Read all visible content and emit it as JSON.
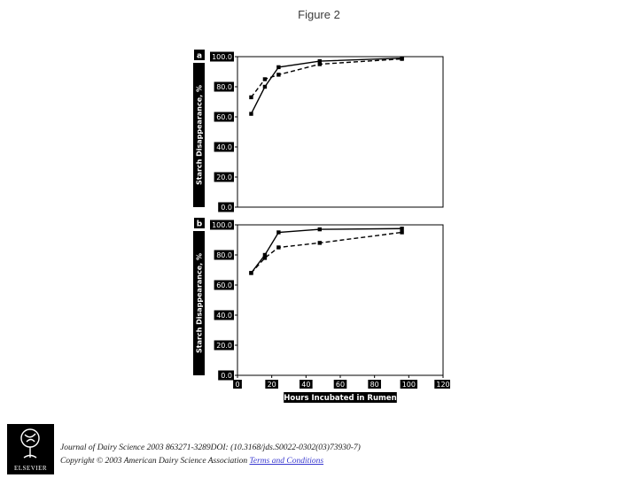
{
  "slide": {
    "title": "Figure 2"
  },
  "logo": {
    "name": "ELSEVIER"
  },
  "footer": {
    "citation": "Journal of Dairy Science 2003 863271-3289DOI: (10.3168/jds.S0022-0302(03)73930-7)",
    "copyright": "Copyright © 2003 American Dairy Science Association ",
    "terms_link": "Terms and Conditions",
    "link_color": "#3a3ad0"
  },
  "chart_data": [
    {
      "type": "line",
      "panel": "a",
      "title": "",
      "ylabel": "Starch Disappearance, %",
      "xlabel": "",
      "x_range": [
        0,
        120
      ],
      "y_range": [
        0,
        100
      ],
      "grid": false,
      "legend": "none",
      "y_ticks": {
        "values": [
          0,
          20,
          40,
          60,
          80,
          100
        ],
        "labels": [
          "0.0",
          "20.0",
          "40.0",
          "60.0",
          "80.0",
          "100.0"
        ]
      },
      "series": [
        {
          "name": "solid line",
          "style": "solid",
          "x": [
            8,
            16,
            24,
            48,
            96
          ],
          "y": [
            62,
            80,
            93,
            97,
            99
          ]
        },
        {
          "name": "dashed line",
          "style": "dashed",
          "x": [
            8,
            16,
            24,
            48,
            96
          ],
          "y": [
            73,
            85,
            88,
            95,
            98.5
          ]
        }
      ]
    },
    {
      "type": "line",
      "panel": "b",
      "title": "",
      "ylabel": "Starch Disappearance, %",
      "xlabel": "Hours Incubated in Rumen",
      "x_range": [
        0,
        120
      ],
      "y_range": [
        0,
        100
      ],
      "grid": false,
      "legend": "none",
      "y_ticks": {
        "values": [
          0,
          20,
          40,
          60,
          80,
          100
        ],
        "labels": [
          "0.0",
          "20.0",
          "40.0",
          "60.0",
          "80.0",
          "100.0"
        ]
      },
      "x_ticks": {
        "values": [
          0,
          20,
          40,
          60,
          80,
          100,
          120
        ],
        "labels": [
          "0",
          "20",
          "40",
          "60",
          "80",
          "100",
          "120"
        ]
      },
      "series": [
        {
          "name": "solid line",
          "style": "solid",
          "x": [
            8,
            16,
            24,
            48,
            96
          ],
          "y": [
            68,
            80,
            95,
            97,
            97.5
          ]
        },
        {
          "name": "dashed line",
          "style": "dashed",
          "x": [
            8,
            16,
            24,
            48,
            96
          ],
          "y": [
            68,
            78,
            85,
            88,
            95
          ]
        }
      ]
    }
  ]
}
